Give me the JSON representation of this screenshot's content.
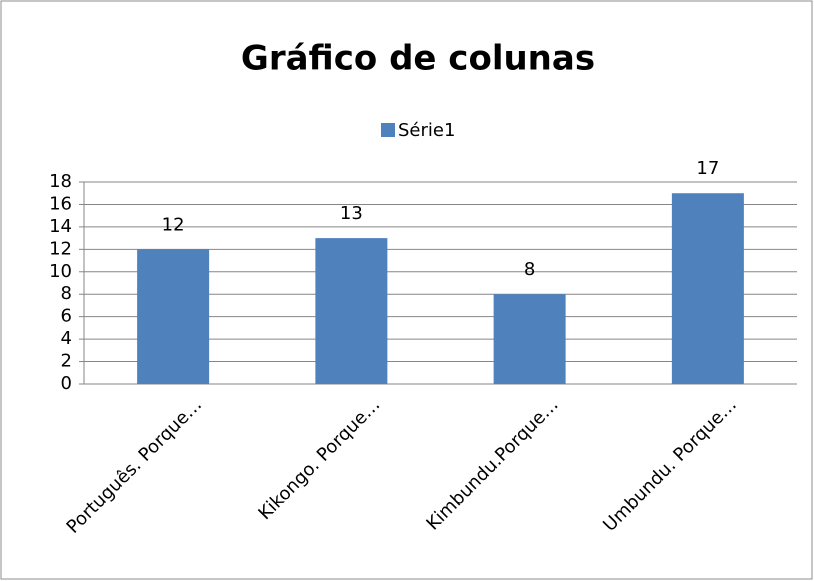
{
  "chart_data": {
    "type": "bar",
    "title": "Gráfico de colunas",
    "categories": [
      "Português. Porque…",
      "Kikongo. Porque…",
      "Kimbundu.Porque…",
      "Umbundu. Porque…"
    ],
    "series": [
      {
        "name": "Série1",
        "color": "#4f81bd",
        "values": [
          12,
          13,
          8,
          17
        ]
      }
    ],
    "ylim": [
      0,
      18
    ],
    "yticks": [
      0,
      2,
      4,
      6,
      8,
      10,
      12,
      14,
      16,
      18
    ],
    "grid": true,
    "legend": "top",
    "data_labels": true
  }
}
